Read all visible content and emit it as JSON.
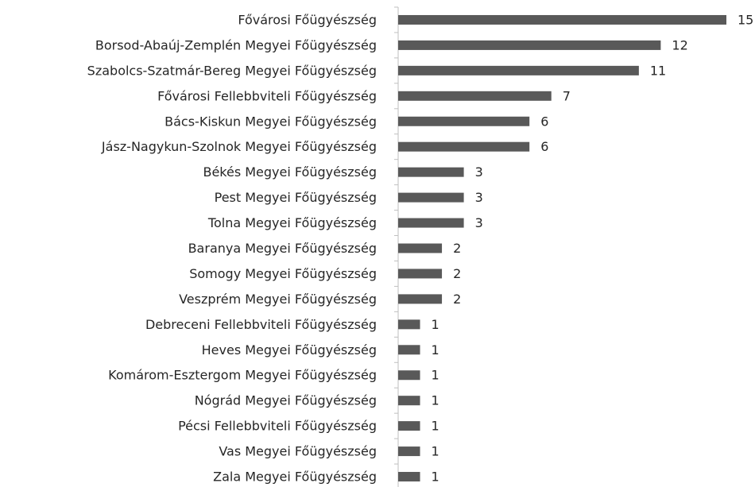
{
  "chart_data": {
    "type": "bar",
    "orientation": "horizontal",
    "categories": [
      "Fővárosi Főügyészség",
      "Borsod-Abaúj-Zemplén Megyei Főügyészség",
      "Szabolcs-Szatmár-Bereg Megyei Főügyészség",
      "Fővárosi Fellebbviteli Főügyészség",
      "Bács-Kiskun Megyei Főügyészség",
      "Jász-Nagykun-Szolnok Megyei Főügyészség",
      "Békés Megyei Főügyészség",
      "Pest Megyei Főügyészség",
      "Tolna Megyei Főügyészség",
      "Baranya Megyei Főügyészség",
      "Somogy Megyei Főügyészség",
      "Veszprém Megyei Főügyészség",
      "Debreceni Fellebbviteli Főügyészség",
      "Heves Megyei Főügyészség",
      "Komárom-Esztergom Megyei Főügyészség",
      "Nógrád Megyei Főügyészség",
      "Pécsi Fellebbviteli Főügyészség",
      "Vas Megyei Főügyészség",
      "Zala Megyei Főügyészség"
    ],
    "values": [
      15,
      12,
      11,
      7,
      6,
      6,
      3,
      3,
      3,
      2,
      2,
      2,
      1,
      1,
      1,
      1,
      1,
      1,
      1
    ],
    "color": "#595959"
  }
}
